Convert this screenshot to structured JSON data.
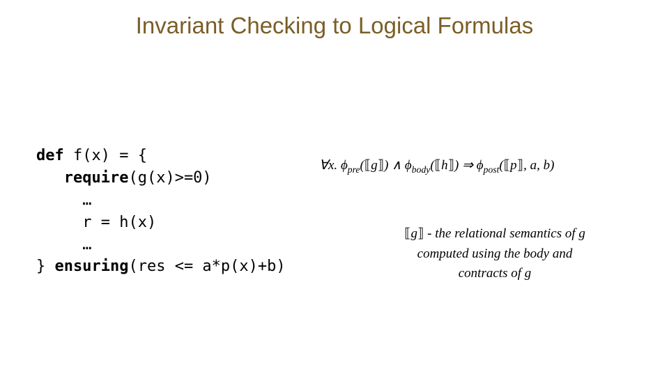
{
  "title": {
    "text": "Invariant Checking to Logical Formulas",
    "color": "#7a5e26",
    "fontsize": 33
  },
  "code": {
    "fontfamily": "Lucida Console, Monaco, monospace",
    "fontsize": 22,
    "lines": {
      "l1_kw": "def",
      "l1_rest": " f(x) = {",
      "l2_indent": "   ",
      "l2_kw": "require",
      "l2_rest": "(g(x)>=0)",
      "l3": "     …",
      "l4": "     r = h(x)",
      "l5": "     …",
      "l6_prefix": "} ",
      "l6_kw": "ensuring",
      "l6_rest": "(res <= a*p(x)+b)"
    }
  },
  "formula": {
    "forall": "∀x. ",
    "phi": "ϕ",
    "sub_pre": "pre",
    "sub_body": "body",
    "sub_post": "post",
    "ldbl": "⟦",
    "rdbl": "⟧",
    "g": "g",
    "h": "h",
    "p": "p",
    "and": " ∧ ",
    "implies": " ⇒ ",
    "tail": ", a, b",
    "open": "(",
    "close": ")"
  },
  "explain": {
    "ldbl": "⟦",
    "rdbl": "⟧",
    "g": "g",
    "dash": " - ",
    "line1": "the relational semantics of g",
    "line2": "computed using the body and",
    "line3": "contracts of g"
  }
}
